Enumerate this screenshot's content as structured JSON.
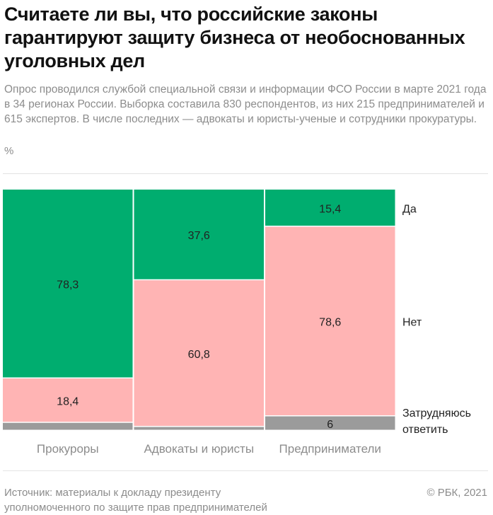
{
  "title": "Считаете ли вы, что российские законы гарантируют защиту бизнеса от необоснованных уголовных дел",
  "subtitle": "Опрос проводился службой специальной связи и информации ФСО России в марте 2021 года в 34 регионах России. Выборка составила 830 респондентов, из них 215 предпринимателей и 615 экспертов. В числе последних — адвокаты и юристы-ученые и сотрудники прокуратуры.",
  "unit": "%",
  "chart_data": {
    "type": "bar",
    "stacked": true,
    "categories": [
      "Прокуроры",
      "Адвокаты и юристы",
      "Предприниматели"
    ],
    "series": [
      {
        "name": "Да",
        "color": "#00ad6f",
        "values": [
          78.3,
          37.6,
          15.4
        ],
        "labels": [
          "78,3",
          "37,6",
          "15,4"
        ]
      },
      {
        "name": "Нет",
        "color": "#ffb4b4",
        "values": [
          18.4,
          60.8,
          78.6
        ],
        "labels": [
          "18,4",
          "60,8",
          "78,6"
        ]
      },
      {
        "name": "Затрудняюсь ответить",
        "color": "#9b9b9b",
        "values": [
          3.3,
          1.6,
          6
        ],
        "labels": [
          "",
          "",
          "6"
        ]
      }
    ],
    "ylim": [
      0,
      100
    ],
    "legend": "right",
    "grid": false
  },
  "footer": {
    "source": "Источник: материалы к докладу президенту уполномоченного по защите прав предпринимателей",
    "copyright": "© РБК, 2021"
  }
}
